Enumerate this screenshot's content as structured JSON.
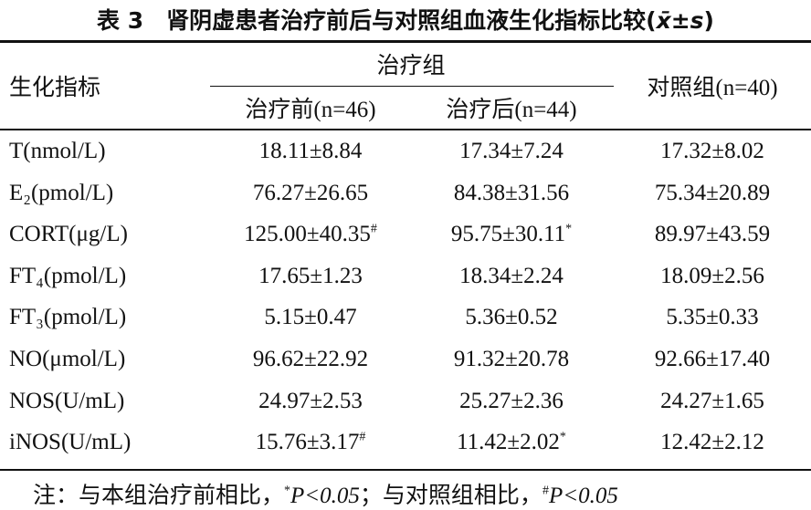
{
  "title": {
    "label": "表 3",
    "text": "肾阴虚患者治疗前后与对照组血液生化指标比较",
    "stat": "x̄±s"
  },
  "header": {
    "indicator": "生化指标",
    "group": "治疗组",
    "before": "治疗前(n=46)",
    "after": "治疗后(n=44)",
    "control": "对照组(n=40)"
  },
  "table": {
    "rows": [
      {
        "label": "T(nmol/L)",
        "cells": [
          {
            "value": "18.11±8.84"
          },
          {
            "value": "17.34±7.24"
          },
          {
            "value": "17.32±8.02"
          }
        ]
      },
      {
        "label": "E₂(pmol/L)",
        "cells": [
          {
            "value": "76.27±26.65"
          },
          {
            "value": "84.38±31.56"
          },
          {
            "value": "75.34±20.89"
          }
        ]
      },
      {
        "label": "CORT(μg/L)",
        "cells": [
          {
            "value": "125.00±40.35",
            "sup": "#"
          },
          {
            "value": "95.75±30.11",
            "sup": "*"
          },
          {
            "value": "89.97±43.59"
          }
        ]
      },
      {
        "label": "FT₄(pmol/L)",
        "cells": [
          {
            "value": "17.65±1.23"
          },
          {
            "value": "18.34±2.24"
          },
          {
            "value": "18.09±2.56"
          }
        ]
      },
      {
        "label": "FT₃(pmol/L)",
        "cells": [
          {
            "value": "5.15±0.47"
          },
          {
            "value": "5.36±0.52"
          },
          {
            "value": "5.35±0.33"
          }
        ]
      },
      {
        "label": "NO(μmol/L)",
        "cells": [
          {
            "value": "96.62±22.92"
          },
          {
            "value": "91.32±20.78"
          },
          {
            "value": "92.66±17.40"
          }
        ]
      },
      {
        "label": "NOS(U/mL)",
        "cells": [
          {
            "value": "24.97±2.53"
          },
          {
            "value": "25.27±2.36"
          },
          {
            "value": "24.27±1.65"
          }
        ]
      },
      {
        "label": "iNOS(U/mL)",
        "cells": [
          {
            "value": "15.76±3.17",
            "sup": "#"
          },
          {
            "value": "11.42±2.02",
            "sup": "*"
          },
          {
            "value": "12.42±2.12"
          }
        ]
      }
    ]
  },
  "note": {
    "lead": "注：与本组治疗前相比，",
    "mark1": "*",
    "p1": "P<0.05",
    "mid": "；与对照组相比，",
    "mark2": "#",
    "p2": "P<0.05"
  }
}
